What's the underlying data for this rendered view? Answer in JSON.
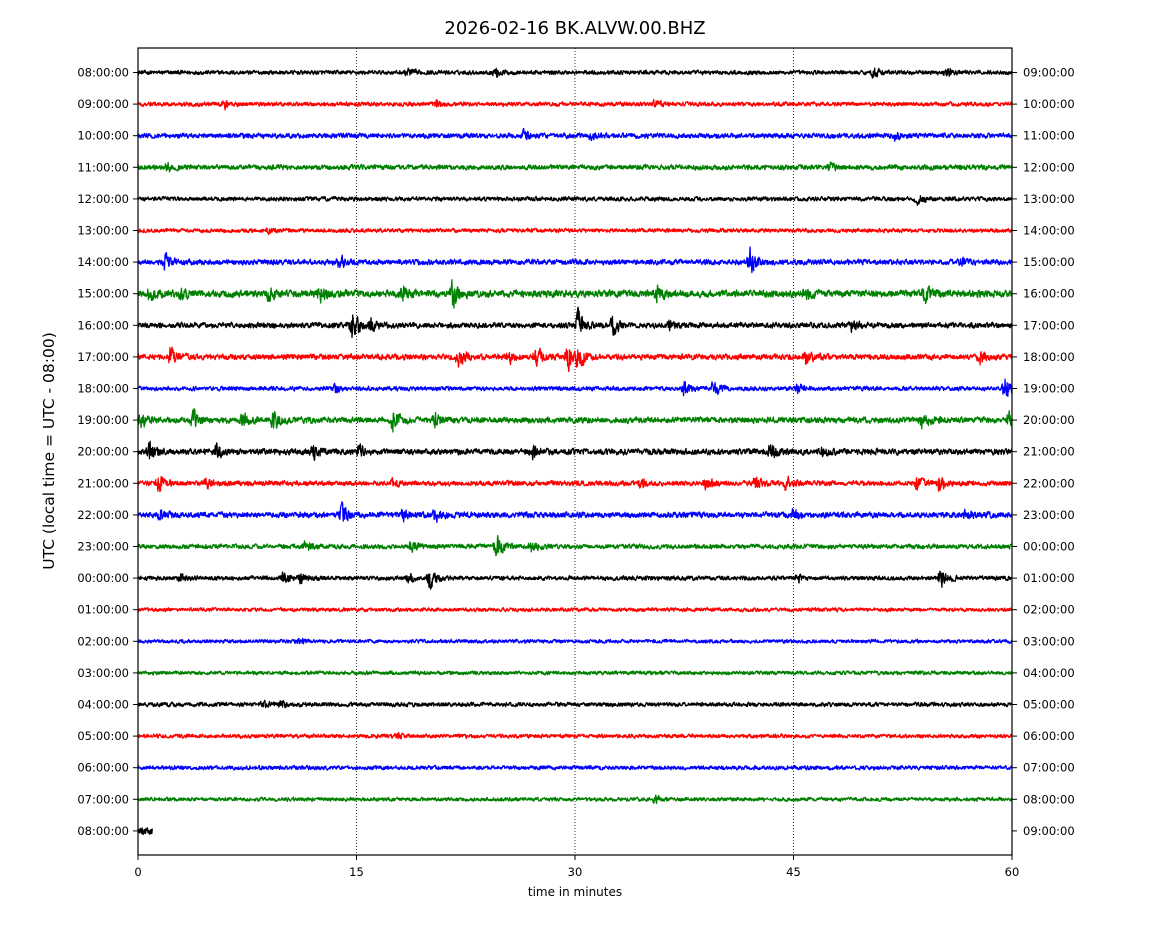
{
  "chart_data": {
    "type": "line",
    "title": "2026-02-16 BK.ALVW.00.BHZ",
    "xlabel": "time in minutes",
    "ylabel": "UTC (local time = UTC - 08:00)",
    "xlim": [
      0,
      60
    ],
    "x_ticks": [
      "0",
      "15",
      "30",
      "45",
      "60"
    ],
    "grid": "vertical dotted lines at 15, 30, 45 minutes",
    "color_cycle": [
      "#000000",
      "#ff0000",
      "#0000ff",
      "#008000"
    ],
    "left_labels": [
      "08:00:00",
      "09:00:00",
      "10:00:00",
      "11:00:00",
      "12:00:00",
      "13:00:00",
      "14:00:00",
      "15:00:00",
      "16:00:00",
      "17:00:00",
      "18:00:00",
      "19:00:00",
      "20:00:00",
      "21:00:00",
      "22:00:00",
      "23:00:00",
      "00:00:00",
      "01:00:00",
      "02:00:00",
      "03:00:00",
      "04:00:00",
      "05:00:00",
      "06:00:00",
      "07:00:00",
      "08:00:00"
    ],
    "right_labels": [
      "09:00:00",
      "10:00:00",
      "11:00:00",
      "12:00:00",
      "13:00:00",
      "14:00:00",
      "15:00:00",
      "16:00:00",
      "17:00:00",
      "18:00:00",
      "19:00:00",
      "20:00:00",
      "21:00:00",
      "22:00:00",
      "23:00:00",
      "00:00:00",
      "01:00:00",
      "02:00:00",
      "03:00:00",
      "04:00:00",
      "05:00:00",
      "06:00:00",
      "07:00:00",
      "08:00:00",
      "09:00:00"
    ],
    "traces": [
      {
        "noise": 0.3,
        "events": [
          [
            18.5,
            0.6
          ],
          [
            24.5,
            0.7
          ],
          [
            50.5,
            0.7
          ],
          [
            55.5,
            0.7
          ]
        ]
      },
      {
        "noise": 0.3,
        "events": [
          [
            6.0,
            0.6
          ],
          [
            20.5,
            0.5
          ],
          [
            35.5,
            0.6
          ]
        ]
      },
      {
        "noise": 0.35,
        "events": [
          [
            26.5,
            0.7
          ],
          [
            31.0,
            0.6
          ],
          [
            52.0,
            0.5
          ]
        ]
      },
      {
        "noise": 0.35,
        "events": [
          [
            2.0,
            0.5
          ],
          [
            47.5,
            0.5
          ]
        ]
      },
      {
        "noise": 0.3,
        "events": [
          [
            53.5,
            0.8
          ]
        ]
      },
      {
        "noise": 0.28,
        "events": [
          [
            9.0,
            0.4
          ]
        ]
      },
      {
        "noise": 0.38,
        "events": [
          [
            1.8,
            1.3
          ],
          [
            13.8,
            0.9
          ],
          [
            42.0,
            1.9
          ],
          [
            56.5,
            0.6
          ]
        ]
      },
      {
        "noise": 0.5,
        "events": [
          [
            0.7,
            0.8
          ],
          [
            3.0,
            0.9
          ],
          [
            9.0,
            0.9
          ],
          [
            12.5,
            1.0
          ],
          [
            18.2,
            0.9
          ],
          [
            21.6,
            2.4
          ],
          [
            35.6,
            1.2
          ],
          [
            45.8,
            0.9
          ],
          [
            54.0,
            1.1
          ]
        ]
      },
      {
        "noise": 0.38,
        "events": [
          [
            14.7,
            2.3
          ],
          [
            16.0,
            0.8
          ],
          [
            30.2,
            2.3
          ],
          [
            32.6,
            1.4
          ],
          [
            36.5,
            0.6
          ],
          [
            49.0,
            0.7
          ]
        ]
      },
      {
        "noise": 0.4,
        "events": [
          [
            2.2,
            1.3
          ],
          [
            22.0,
            1.8
          ],
          [
            25.5,
            1.0
          ],
          [
            27.3,
            1.5
          ],
          [
            29.5,
            2.3
          ],
          [
            30.2,
            1.7
          ],
          [
            45.8,
            1.1
          ],
          [
            57.8,
            0.8
          ]
        ]
      },
      {
        "noise": 0.3,
        "events": [
          [
            13.5,
            0.7
          ],
          [
            37.5,
            1.3
          ],
          [
            39.5,
            1.2
          ],
          [
            45.3,
            0.6
          ],
          [
            59.5,
            1.6
          ]
        ]
      },
      {
        "noise": 0.42,
        "events": [
          [
            0.2,
            1.0
          ],
          [
            3.8,
            1.2
          ],
          [
            7.2,
            1.1
          ],
          [
            9.3,
            1.3
          ],
          [
            17.5,
            1.5
          ],
          [
            20.4,
            0.9
          ],
          [
            53.8,
            1.3
          ],
          [
            59.8,
            1.2
          ]
        ]
      },
      {
        "noise": 0.42,
        "events": [
          [
            0.8,
            1.4
          ],
          [
            5.4,
            1.0
          ],
          [
            12.0,
            1.2
          ],
          [
            15.2,
            1.0
          ],
          [
            27.1,
            1.1
          ],
          [
            43.4,
            1.1
          ],
          [
            47.0,
            0.6
          ]
        ]
      },
      {
        "noise": 0.35,
        "events": [
          [
            1.4,
            1.2
          ],
          [
            4.7,
            0.7
          ],
          [
            17.4,
            0.6
          ],
          [
            34.5,
            0.7
          ],
          [
            39.0,
            1.0
          ],
          [
            42.4,
            1.1
          ],
          [
            44.5,
            1.1
          ],
          [
            53.5,
            0.9
          ],
          [
            55.0,
            1.1
          ]
        ]
      },
      {
        "noise": 0.4,
        "events": [
          [
            1.5,
            0.9
          ],
          [
            14.0,
            1.3
          ],
          [
            18.2,
            0.8
          ],
          [
            20.4,
            0.8
          ],
          [
            45.0,
            0.7
          ],
          [
            56.8,
            0.6
          ]
        ]
      },
      {
        "noise": 0.32,
        "events": [
          [
            11.5,
            0.7
          ],
          [
            18.8,
            0.8
          ],
          [
            24.6,
            1.8
          ],
          [
            27.0,
            1.1
          ]
        ]
      },
      {
        "noise": 0.3,
        "events": [
          [
            2.9,
            0.6
          ],
          [
            10.0,
            1.1
          ],
          [
            11.2,
            0.8
          ],
          [
            18.6,
            0.6
          ],
          [
            20.0,
            1.6
          ],
          [
            45.3,
            0.5
          ],
          [
            55.1,
            1.6
          ]
        ]
      },
      {
        "noise": 0.26,
        "events": []
      },
      {
        "noise": 0.26,
        "events": [
          [
            11.0,
            0.4
          ]
        ]
      },
      {
        "noise": 0.26,
        "events": []
      },
      {
        "noise": 0.3,
        "events": [
          [
            8.5,
            0.5
          ],
          [
            9.8,
            0.5
          ]
        ]
      },
      {
        "noise": 0.28,
        "events": [
          [
            17.8,
            0.4
          ]
        ]
      },
      {
        "noise": 0.28,
        "events": []
      },
      {
        "noise": 0.26,
        "events": [
          [
            35.5,
            0.5
          ]
        ]
      },
      {
        "noise": 0.55,
        "end": 1.0,
        "events": []
      }
    ]
  }
}
